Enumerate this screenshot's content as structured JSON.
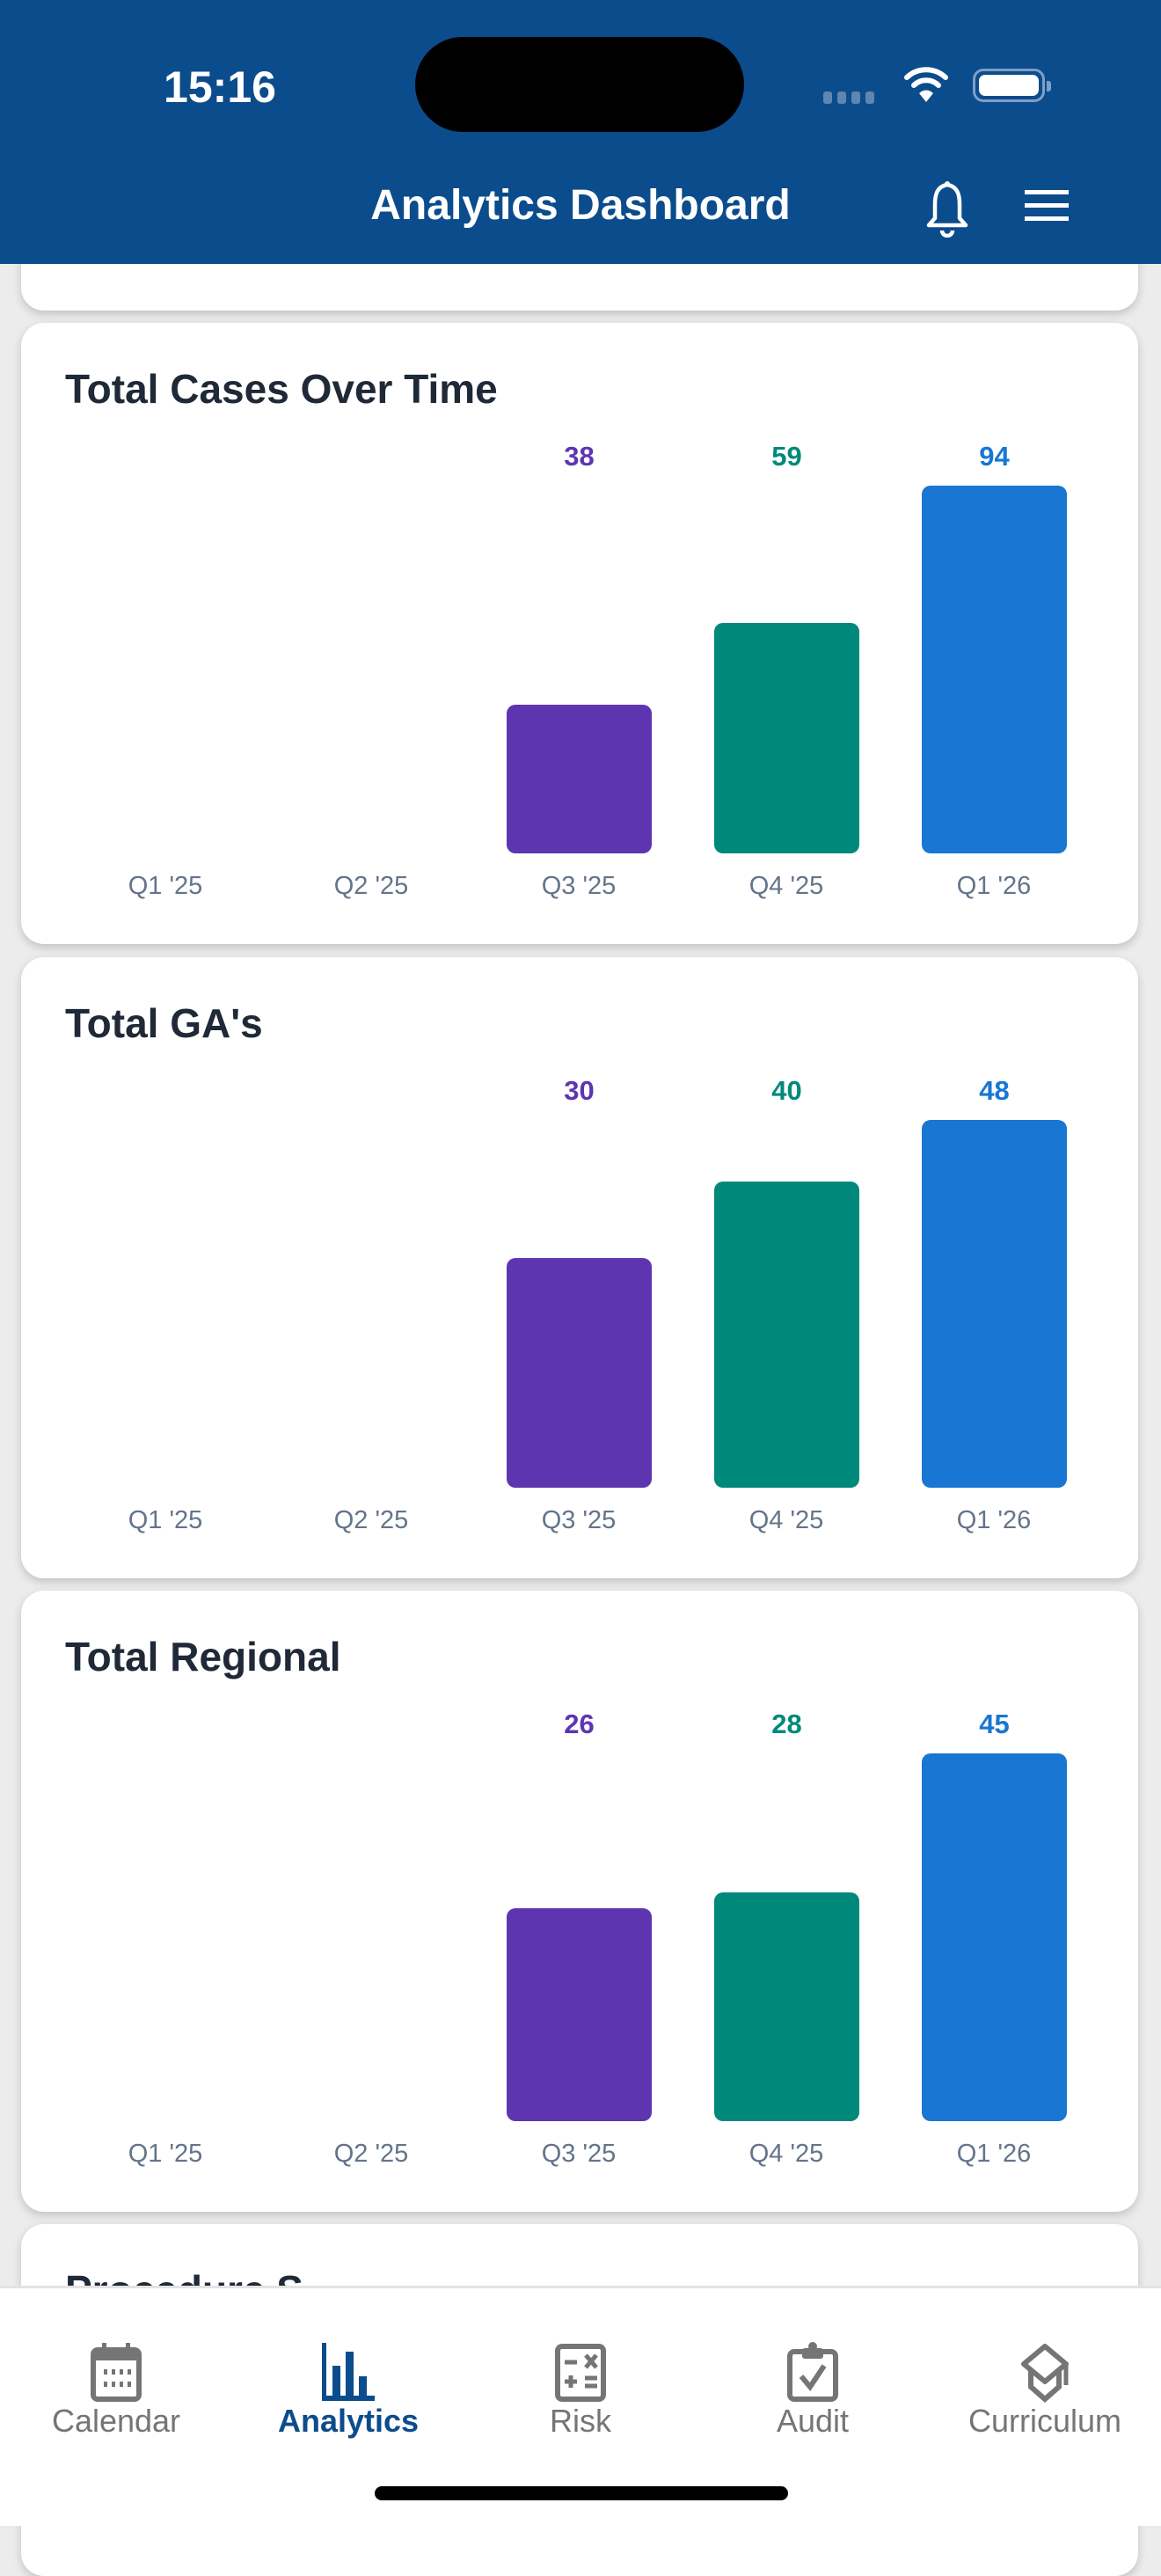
{
  "status_bar": {
    "time": "15:16"
  },
  "header": {
    "title": "Analytics Dashboard",
    "icons": [
      "bell-icon",
      "menu-icon"
    ]
  },
  "colors": {
    "header": "#0B4C8C",
    "q3": "#5E35B1",
    "q4": "#00897B",
    "q1_26": "#1976D2",
    "nav_active": "#0B4C8C",
    "nav_inactive": "#757575"
  },
  "chart_data": [
    {
      "type": "bar",
      "title": "Total Cases Over Time",
      "categories": [
        "Q1 '25",
        "Q2 '25",
        "Q3 '25",
        "Q4 '25",
        "Q1 '26"
      ],
      "values": [
        null,
        null,
        38,
        59,
        94
      ],
      "bar_colors": [
        "#5E35B1",
        "#5E35B1",
        "#5E35B1",
        "#00897B",
        "#1976D2"
      ],
      "grid": false
    },
    {
      "type": "bar",
      "title": "Total GA's",
      "categories": [
        "Q1 '25",
        "Q2 '25",
        "Q3 '25",
        "Q4 '25",
        "Q1 '26"
      ],
      "values": [
        null,
        null,
        30,
        40,
        48
      ],
      "bar_colors": [
        "#5E35B1",
        "#5E35B1",
        "#5E35B1",
        "#00897B",
        "#1976D2"
      ],
      "grid": false
    },
    {
      "type": "bar",
      "title": "Total Regional",
      "categories": [
        "Q1 '25",
        "Q2 '25",
        "Q3 '25",
        "Q4 '25",
        "Q1 '26"
      ],
      "values": [
        null,
        null,
        26,
        28,
        45
      ],
      "bar_colors": [
        "#5E35B1",
        "#5E35B1",
        "#5E35B1",
        "#00897B",
        "#1976D2"
      ],
      "grid": false
    }
  ],
  "partial_card": {
    "title": "Procedure S"
  },
  "bottom_nav": {
    "items": [
      {
        "label": "Calendar",
        "icon": "calendar-icon",
        "active": false
      },
      {
        "label": "Analytics",
        "icon": "bar-chart-icon",
        "active": true
      },
      {
        "label": "Risk",
        "icon": "calculator-icon",
        "active": false
      },
      {
        "label": "Audit",
        "icon": "clipboard-check-icon",
        "active": false
      },
      {
        "label": "Curriculum",
        "icon": "graduation-cap-icon",
        "active": false
      }
    ]
  }
}
